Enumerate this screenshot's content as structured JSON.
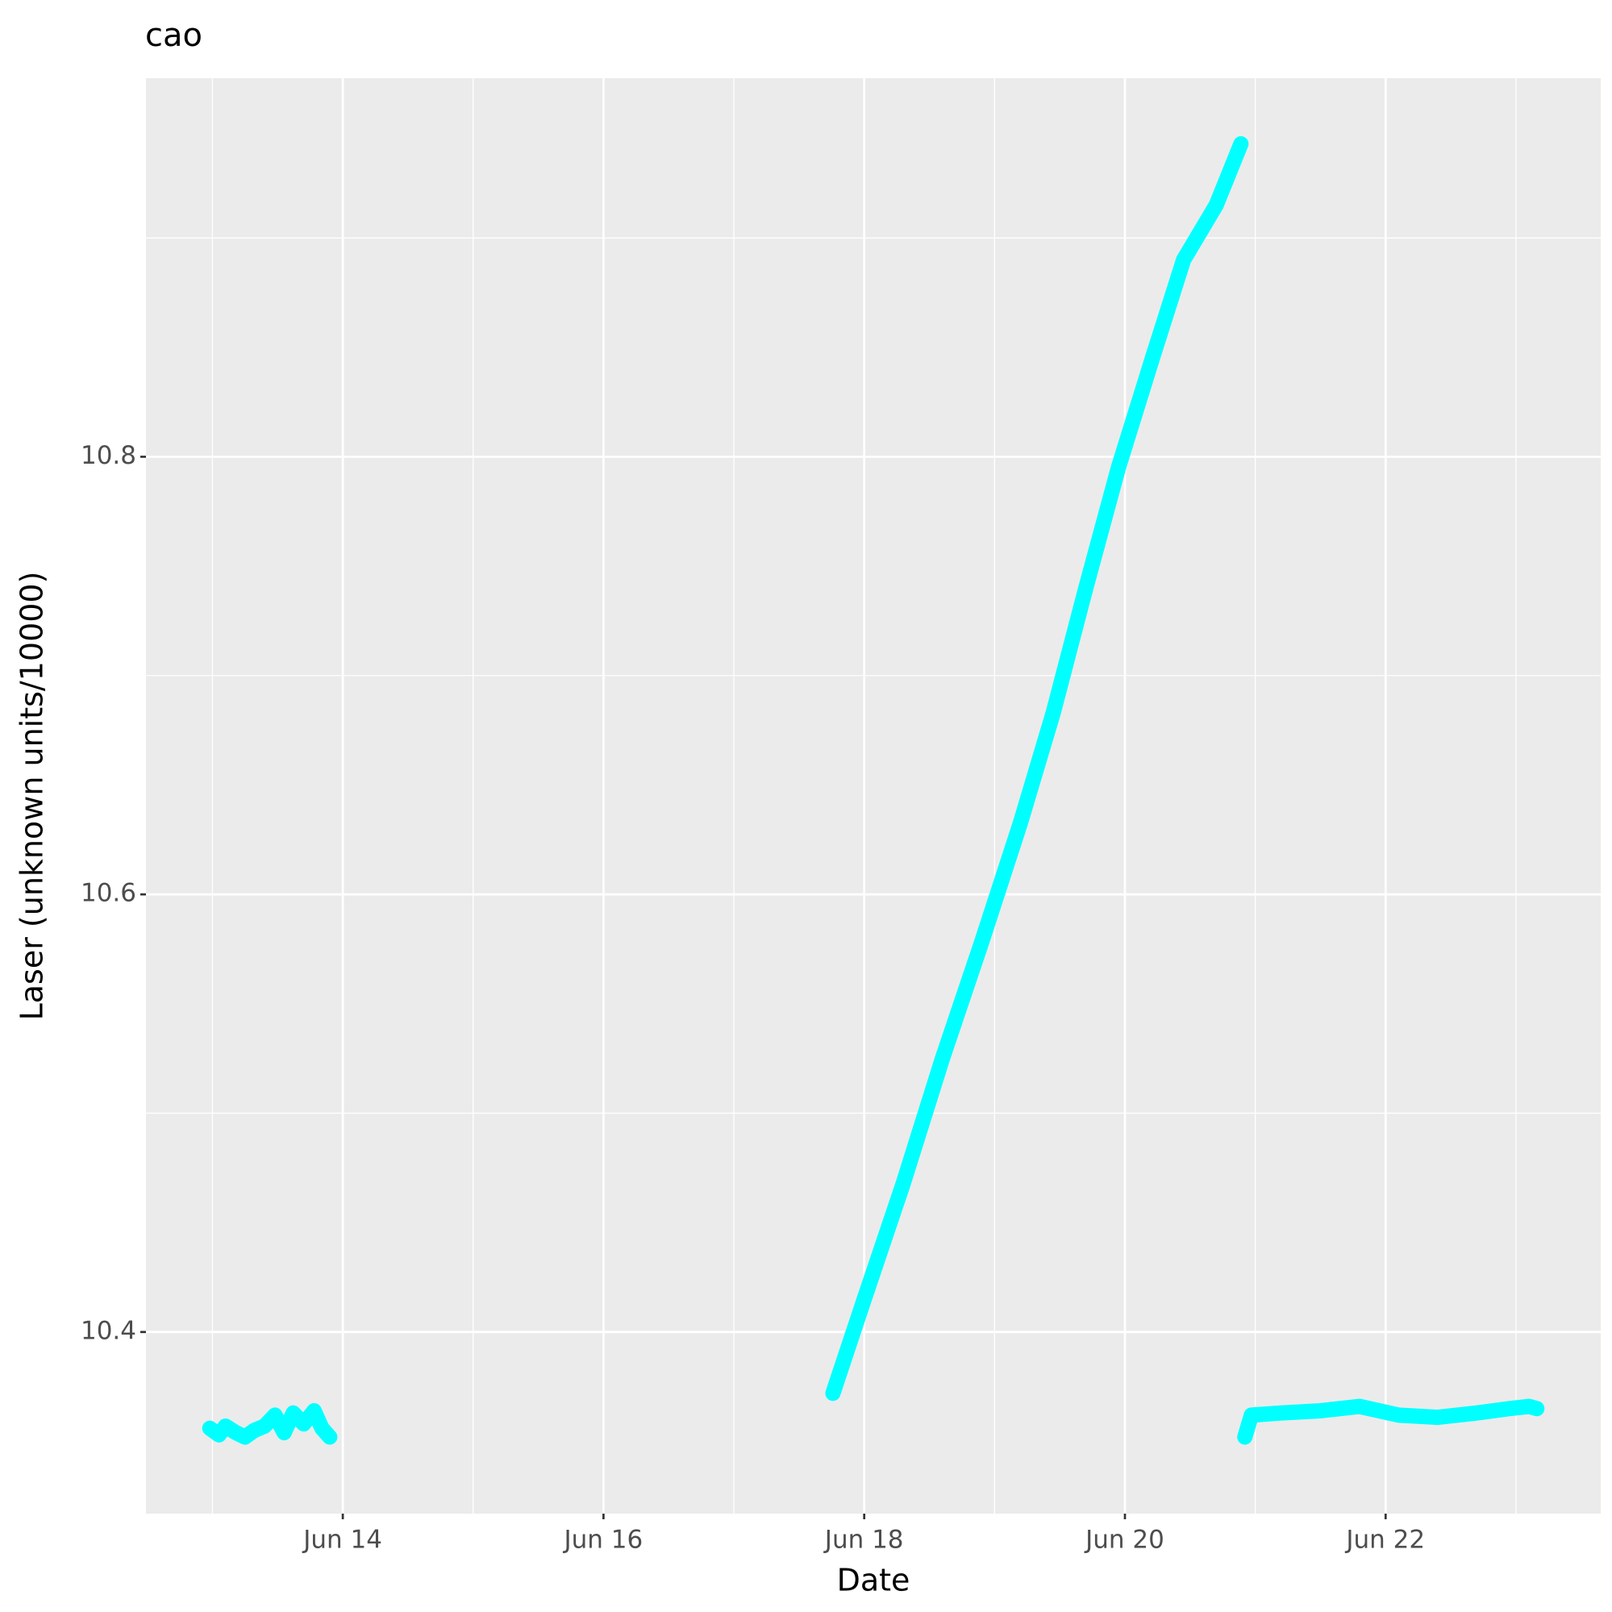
{
  "chart_data": {
    "type": "line",
    "title": "cao",
    "x_label": "Date",
    "y_label": "Laser (unknown units/10000)",
    "x": [
      12.98,
      13.05,
      13.1,
      13.18,
      13.25,
      13.32,
      13.4,
      13.48,
      13.55,
      13.62,
      13.7,
      13.78,
      13.84,
      13.9,
      15.5,
      17.76,
      18.0,
      18.3,
      18.6,
      18.9,
      19.2,
      19.45,
      19.7,
      19.95,
      20.2,
      20.45,
      20.7,
      20.89,
      20.905,
      20.92,
      20.97,
      21.2,
      21.5,
      21.8,
      22.1,
      22.4,
      22.7,
      22.95,
      23.1,
      23.16
    ],
    "series": [
      {
        "color": "#00ffff",
        "values": [
          10.356,
          10.353,
          10.357,
          10.354,
          10.352,
          10.355,
          10.357,
          10.362,
          10.354,
          10.363,
          10.358,
          10.364,
          10.356,
          10.352,
          null,
          10.372,
          10.415,
          10.468,
          10.525,
          10.578,
          10.633,
          10.683,
          10.74,
          10.795,
          10.843,
          10.89,
          10.915,
          10.943,
          null,
          10.352,
          10.362,
          10.363,
          10.364,
          10.366,
          10.362,
          10.361,
          10.363,
          10.365,
          10.366,
          10.365
        ]
      }
    ],
    "xlim": [
      12.49,
      23.65
    ],
    "xticks": [
      {
        "value": 14,
        "label": "Jun 14"
      },
      {
        "value": 16,
        "label": "Jun 16"
      },
      {
        "value": 18,
        "label": "Jun 18"
      },
      {
        "value": 20,
        "label": "Jun 20"
      },
      {
        "value": 22,
        "label": "Jun 22"
      }
    ],
    "ylim": [
      10.317,
      10.973
    ],
    "yticks": [
      10.4,
      10.6,
      10.8
    ],
    "grid": true
  }
}
